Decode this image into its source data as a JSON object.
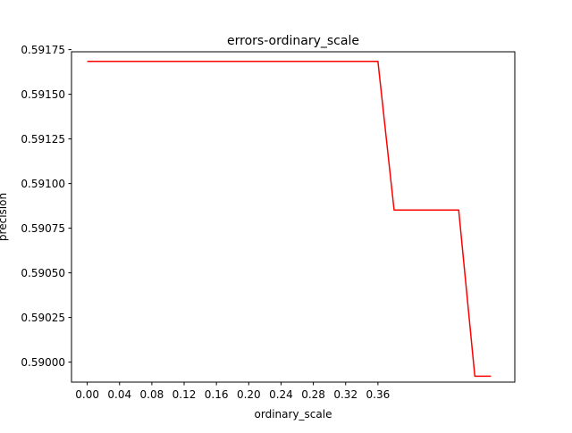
{
  "chart_data": {
    "type": "line",
    "title": "errors-ordinary_scale",
    "xlabel": "ordinary_scale",
    "ylabel": "precision",
    "xlim": [
      -0.0195,
      0.5295
    ],
    "ylim": [
      0.589888,
      0.591738
    ],
    "xticks": [
      0.0,
      0.04,
      0.08,
      0.12,
      0.16,
      0.2,
      0.24,
      0.28,
      0.32,
      0.36
    ],
    "xtick_labels": [
      "0.00",
      "0.04",
      "0.08",
      "0.12",
      "0.16",
      "0.20",
      "0.24",
      "0.28",
      "0.32",
      "0.36"
    ],
    "yticks": [
      0.59,
      0.59025,
      0.5905,
      0.59075,
      0.591,
      0.59125,
      0.5915,
      0.59175
    ],
    "ytick_labels": [
      "0.59000",
      "0.59025",
      "0.59050",
      "0.59075",
      "0.59100",
      "0.59125",
      "0.59150",
      "0.59175"
    ],
    "grid": false,
    "series": [
      {
        "color": "#ff0000",
        "x": [
          0.0,
          0.36,
          0.38,
          0.46,
          0.48,
          0.5
        ],
        "y": [
          0.591684,
          0.591684,
          0.590852,
          0.590852,
          0.589921,
          0.589921
        ]
      }
    ]
  }
}
